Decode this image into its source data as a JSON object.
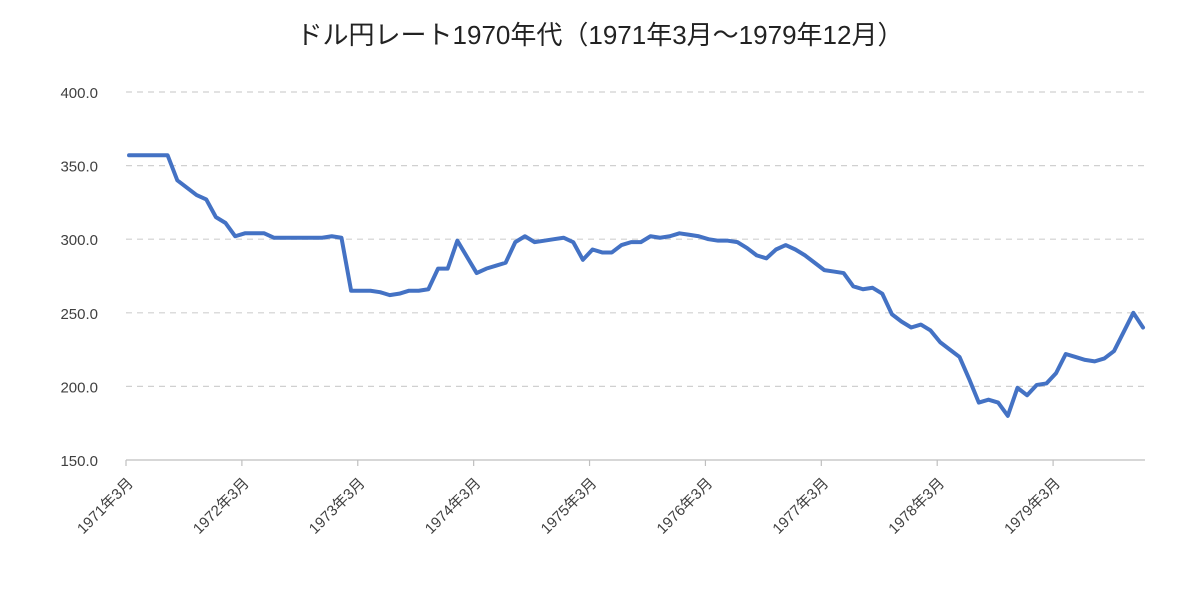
{
  "chart_data": {
    "type": "line",
    "title": "ドル円レート1970年代（1971年3月～1979年12月）",
    "categories": [
      "1971年3月",
      null,
      null,
      null,
      null,
      null,
      null,
      null,
      null,
      null,
      null,
      null,
      "1972年3月",
      null,
      null,
      null,
      null,
      null,
      null,
      null,
      null,
      null,
      null,
      null,
      "1973年3月",
      null,
      null,
      null,
      null,
      null,
      null,
      null,
      null,
      null,
      null,
      null,
      "1974年3月",
      null,
      null,
      null,
      null,
      null,
      null,
      null,
      null,
      null,
      null,
      null,
      "1975年3月",
      null,
      null,
      null,
      null,
      null,
      null,
      null,
      null,
      null,
      null,
      null,
      "1976年3月",
      null,
      null,
      null,
      null,
      null,
      null,
      null,
      null,
      null,
      null,
      null,
      "1977年3月",
      null,
      null,
      null,
      null,
      null,
      null,
      null,
      null,
      null,
      null,
      null,
      "1978年3月",
      null,
      null,
      null,
      null,
      null,
      null,
      null,
      null,
      null,
      null,
      null,
      "1979年3月",
      null,
      null,
      null,
      null,
      null,
      null,
      null,
      null,
      null
    ],
    "values": [
      357,
      357,
      357,
      357,
      357,
      340,
      335,
      330,
      327,
      315,
      311,
      302,
      304,
      304,
      304,
      301,
      301,
      301,
      301,
      301,
      301,
      302,
      301,
      265,
      265,
      265,
      264,
      262,
      263,
      265,
      265,
      266,
      280,
      280,
      299,
      288,
      277,
      280,
      282,
      284,
      298,
      302,
      298,
      299,
      300,
      301,
      298,
      286,
      293,
      291,
      291,
      296,
      298,
      298,
      302,
      301,
      302,
      304,
      303,
      302,
      300,
      299,
      299,
      298,
      294,
      289,
      287,
      293,
      296,
      293,
      289,
      284,
      279,
      278,
      277,
      268,
      266,
      267,
      263,
      249,
      244,
      240,
      242,
      238,
      230,
      225,
      220,
      205,
      189,
      191,
      189,
      180,
      199,
      194,
      201,
      202,
      209,
      222,
      220,
      218,
      217,
      219,
      224,
      237,
      250,
      240
    ],
    "color": "#4472c4",
    "ylim": [
      150,
      400
    ],
    "yticks": [
      {
        "value": 150,
        "label": "150.0"
      },
      {
        "value": 200,
        "label": "200.0"
      },
      {
        "value": 250,
        "label": "250.0"
      },
      {
        "value": 300,
        "label": "300.0"
      },
      {
        "value": 350,
        "label": "350.0"
      },
      {
        "value": 400,
        "label": "400.0"
      }
    ],
    "grid": true
  }
}
